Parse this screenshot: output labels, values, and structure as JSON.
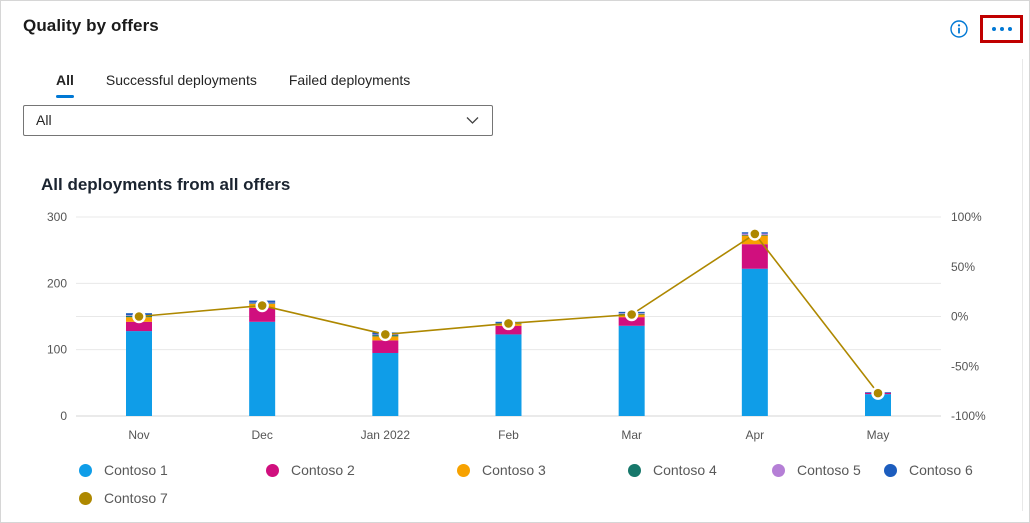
{
  "card": {
    "title": "Quality by offers"
  },
  "toolbar": {
    "icon_color": "#0078d4",
    "callout_color": "#c00000",
    "info_icon": "info",
    "more_icon": "more-options-ellipsis"
  },
  "tabs": [
    {
      "label": "All",
      "active": true
    },
    {
      "label": "Successful deployments",
      "active": false
    },
    {
      "label": "Failed deployments",
      "active": false
    }
  ],
  "filter_dropdown": {
    "value": "All"
  },
  "chart_data": {
    "type": "bar",
    "subtype": "stacked-column-with-line",
    "title": "All deployments from all offers",
    "categories": [
      "Nov",
      "Dec",
      "Jan 2022",
      "Feb",
      "Mar",
      "Apr",
      "May"
    ],
    "series": [
      {
        "name": "Contoso 1",
        "color": "#0f9de8",
        "values": [
          128,
          142,
          95,
          123,
          136,
          222,
          33
        ]
      },
      {
        "name": "Contoso 2",
        "color": "#d00f7e",
        "values": [
          14,
          21,
          19,
          13,
          13,
          37,
          2
        ]
      },
      {
        "name": "Contoso 3",
        "color": "#f7a200",
        "values": [
          7,
          6,
          6,
          3,
          4,
          13,
          0
        ]
      },
      {
        "name": "Contoso 4",
        "color": "#17786b",
        "values": [
          2,
          1,
          2,
          1,
          1,
          1,
          0
        ]
      },
      {
        "name": "Contoso 5",
        "color": "#b57fd6",
        "values": [
          1,
          1,
          1,
          0,
          1,
          2,
          0
        ]
      },
      {
        "name": "Contoso 6",
        "color": "#1c5dbe",
        "values": [
          3,
          3,
          3,
          2,
          2,
          2,
          1
        ]
      }
    ],
    "line_series": {
      "name": "Contoso 7",
      "color": "#ae8800",
      "axis": "right",
      "values_pct": [
        0,
        11,
        -18,
        -7,
        2,
        83,
        -77
      ]
    },
    "left_axis": {
      "min": 0,
      "max": 300,
      "ticks": [
        300,
        200,
        100,
        0
      ]
    },
    "right_axis": {
      "min": -100,
      "max": 100,
      "tick_labels": [
        "100%",
        "50%",
        "0%",
        "-50%",
        "-100%"
      ]
    },
    "grid": true,
    "legend_position": "bottom"
  }
}
